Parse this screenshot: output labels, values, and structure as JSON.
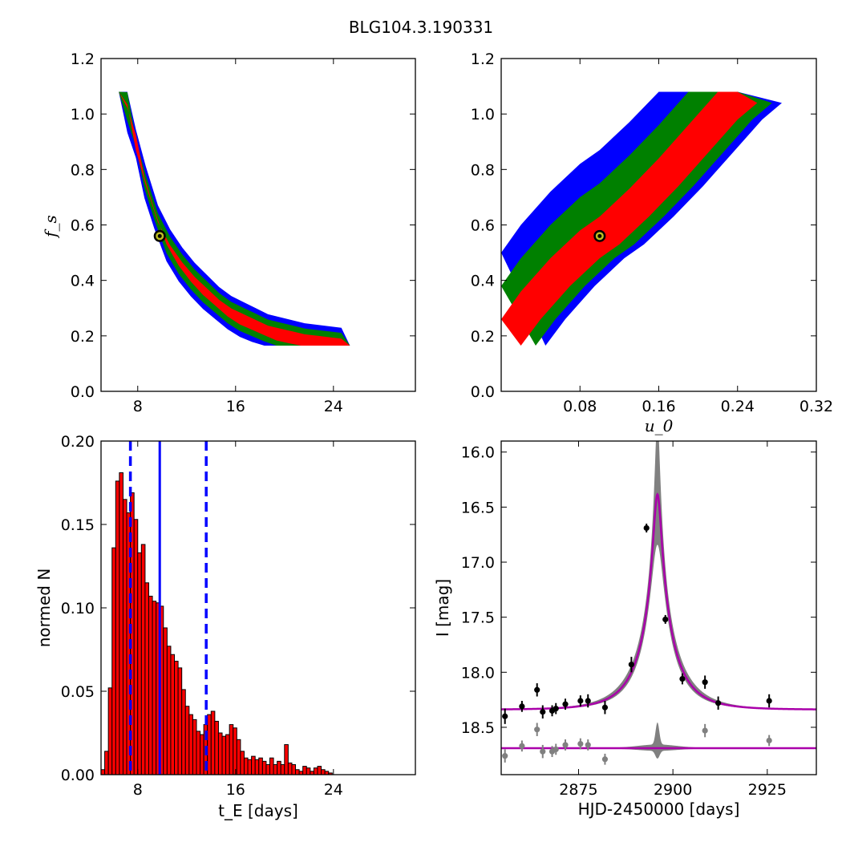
{
  "figure_title": "BLG104.3.190331",
  "colors": {
    "inner": "#ff0000",
    "middle": "#008000",
    "outer": "#0000ff",
    "curve_model": "#aa00aa",
    "band": "#808080"
  },
  "chart_data": [
    {
      "type": "heatmap",
      "id": "fs_vs_tE",
      "xlabel": "",
      "ylabel": "f_s",
      "xlim": [
        5,
        30.7
      ],
      "ylim": [
        0.0,
        1.2
      ],
      "xticks": [
        "8",
        "16",
        "24"
      ],
      "yticks": [
        "0.0",
        "0.2",
        "0.4",
        "0.6",
        "0.8",
        "1.0",
        "1.2"
      ],
      "ridge": [
        [
          6.8,
          1.08
        ],
        [
          7.5,
          0.98
        ],
        [
          8.2,
          0.82
        ],
        [
          9.0,
          0.7
        ],
        [
          10.0,
          0.57
        ],
        [
          11.0,
          0.49
        ],
        [
          12.0,
          0.43
        ],
        [
          13.0,
          0.38
        ],
        [
          14.0,
          0.34
        ],
        [
          15.0,
          0.3
        ],
        [
          16.0,
          0.27
        ],
        [
          17.0,
          0.25
        ],
        [
          18.0,
          0.23
        ],
        [
          19.0,
          0.21
        ],
        [
          20.0,
          0.2
        ],
        [
          21.0,
          0.19
        ],
        [
          22.0,
          0.18
        ],
        [
          23.0,
          0.175
        ],
        [
          24.0,
          0.17
        ],
        [
          25.0,
          0.165
        ]
      ],
      "best_fit": [
        9.8,
        0.56
      ]
    },
    {
      "type": "heatmap",
      "id": "fs_vs_u0",
      "xlabel": "u_0",
      "ylabel": "",
      "xlim": [
        0.0,
        0.32
      ],
      "ylim": [
        0.0,
        1.2
      ],
      "xticks": [
        "0.08",
        "0.16",
        "0.24",
        "0.32"
      ],
      "yticks": [
        "0.0",
        "0.2",
        "0.4",
        "0.6",
        "0.8",
        "1.0",
        "1.2"
      ],
      "ridge": [
        [
          0.0,
          0.2
        ],
        [
          0.02,
          0.3
        ],
        [
          0.05,
          0.42
        ],
        [
          0.08,
          0.52
        ],
        [
          0.1,
          0.57
        ],
        [
          0.13,
          0.67
        ],
        [
          0.16,
          0.78
        ],
        [
          0.19,
          0.9
        ],
        [
          0.22,
          1.02
        ],
        [
          0.24,
          1.08
        ]
      ],
      "best_fit": [
        0.1,
        0.56
      ]
    },
    {
      "type": "bar",
      "id": "tE_histogram",
      "xlabel": "t_E [days]",
      "ylabel": "normed N",
      "xlim": [
        5,
        30.7
      ],
      "ylim": [
        0.0,
        0.2
      ],
      "xticks": [
        "8",
        "16",
        "24"
      ],
      "yticks": [
        "0.00",
        "0.05",
        "0.10",
        "0.15",
        "0.20"
      ],
      "bin_start": 5.0,
      "bin_width": 0.3,
      "values": [
        0.003,
        0.014,
        0.052,
        0.136,
        0.176,
        0.181,
        0.165,
        0.157,
        0.169,
        0.153,
        0.133,
        0.138,
        0.115,
        0.107,
        0.104,
        0.103,
        0.101,
        0.088,
        0.077,
        0.072,
        0.068,
        0.064,
        0.051,
        0.041,
        0.036,
        0.033,
        0.026,
        0.024,
        0.03,
        0.036,
        0.038,
        0.032,
        0.025,
        0.023,
        0.024,
        0.03,
        0.028,
        0.021,
        0.014,
        0.01,
        0.009,
        0.011,
        0.009,
        0.01,
        0.008,
        0.006,
        0.01,
        0.006,
        0.008,
        0.006,
        0.018,
        0.007,
        0.006,
        0.003,
        0.002,
        0.005,
        0.004,
        0.002,
        0.004,
        0.005,
        0.003,
        0.002,
        0.001,
        0.0,
        0.0
      ],
      "median": 9.8,
      "bounds": [
        7.4,
        13.6
      ]
    },
    {
      "type": "line",
      "id": "light_curve",
      "xlabel": "HJD-2450000 [days]",
      "ylabel": "I [mag]",
      "xlim": [
        2854.5,
        2938
      ],
      "ylim": [
        18.93,
        15.9
      ],
      "xticks": [
        "2875",
        "2900",
        "2925"
      ],
      "yticks": [
        "16.0",
        "16.5",
        "17.0",
        "17.5",
        "18.0",
        "18.5"
      ],
      "model": {
        "t0": 2895.9,
        "u0": 0.1,
        "tE": 9.8,
        "baseline": 18.34,
        "fs": 0.56
      },
      "residual_level": 18.69,
      "points": [
        [
          2855.5,
          18.4,
          0.07
        ],
        [
          2860,
          18.31,
          0.05
        ],
        [
          2864,
          18.16,
          0.06
        ],
        [
          2865.5,
          18.36,
          0.06
        ],
        [
          2868,
          18.35,
          0.05
        ],
        [
          2869,
          18.33,
          0.05
        ],
        [
          2871.5,
          18.29,
          0.05
        ],
        [
          2875.5,
          18.26,
          0.05
        ],
        [
          2877.5,
          18.26,
          0.06
        ],
        [
          2882,
          18.32,
          0.06
        ],
        [
          2889,
          17.93,
          0.07
        ],
        [
          2893,
          16.69,
          0.04
        ],
        [
          2898,
          17.52,
          0.04
        ],
        [
          2902.5,
          18.06,
          0.05
        ],
        [
          2908.5,
          18.09,
          0.06
        ],
        [
          2912,
          18.28,
          0.06
        ],
        [
          2925.5,
          18.26,
          0.06
        ]
      ],
      "residuals": [
        [
          2855.5,
          18.76,
          0.06
        ],
        [
          2860,
          18.67,
          0.05
        ],
        [
          2864,
          18.52,
          0.06
        ],
        [
          2865.5,
          18.72,
          0.06
        ],
        [
          2868,
          18.72,
          0.05
        ],
        [
          2869,
          18.7,
          0.05
        ],
        [
          2871.5,
          18.66,
          0.05
        ],
        [
          2875.5,
          18.65,
          0.05
        ],
        [
          2877.5,
          18.66,
          0.05
        ],
        [
          2882,
          18.79,
          0.05
        ],
        [
          2908.5,
          18.53,
          0.06
        ],
        [
          2925.5,
          18.62,
          0.05
        ]
      ]
    }
  ]
}
